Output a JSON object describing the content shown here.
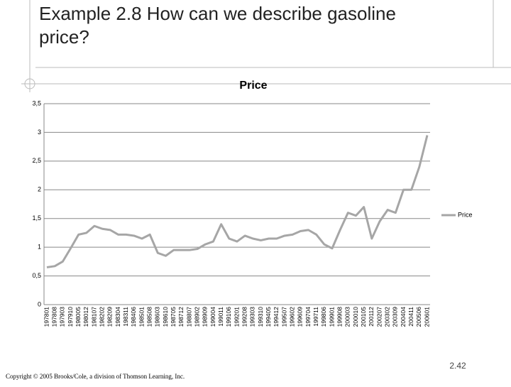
{
  "slide": {
    "title": "Example 2.8 How can we describe gasoline price?",
    "footer": "Copyright © 2005 Brooks/Cole, a division of Thomson Learning, Inc.",
    "page_number": "2.42"
  },
  "chart_data": {
    "type": "line",
    "title": "Price",
    "categories": [
      "197801",
      "197808",
      "197903",
      "197910",
      "198005",
      "198012",
      "198107",
      "198202",
      "198209",
      "198304",
      "198311",
      "198406",
      "198501",
      "198508",
      "198603",
      "198610",
      "198705",
      "198712",
      "198807",
      "198902",
      "198909",
      "199004",
      "199011",
      "199106",
      "199201",
      "199208",
      "199303",
      "199310",
      "199405",
      "199412",
      "199507",
      "199602",
      "199609",
      "199704",
      "199711",
      "199806",
      "199901",
      "199908",
      "200003",
      "200010",
      "200105",
      "200112",
      "200207",
      "200302",
      "200309",
      "200404",
      "200411",
      "200506",
      "200601"
    ],
    "series": [
      {
        "name": "Price",
        "color": "#a6a6a6",
        "values": [
          0.65,
          0.67,
          0.75,
          0.98,
          1.22,
          1.25,
          1.37,
          1.32,
          1.3,
          1.22,
          1.22,
          1.2,
          1.15,
          1.22,
          0.9,
          0.85,
          0.95,
          0.95,
          0.95,
          0.97,
          1.05,
          1.1,
          1.4,
          1.15,
          1.1,
          1.2,
          1.15,
          1.12,
          1.15,
          1.15,
          1.2,
          1.22,
          1.28,
          1.3,
          1.22,
          1.05,
          0.98,
          1.3,
          1.6,
          1.55,
          1.7,
          1.15,
          1.45,
          1.65,
          1.6,
          2.0,
          2.0,
          2.4,
          2.95
        ]
      }
    ],
    "ylim": [
      0,
      3.5
    ],
    "yticks": [
      0,
      {
        "value": 0.5,
        "label": "0,5"
      },
      1,
      {
        "value": 1.5,
        "label": "1,5"
      },
      2,
      {
        "value": 2.5,
        "label": "2,5"
      },
      3,
      {
        "value": 3.5,
        "label": "3,5"
      }
    ],
    "grid": true,
    "legend": "right"
  }
}
